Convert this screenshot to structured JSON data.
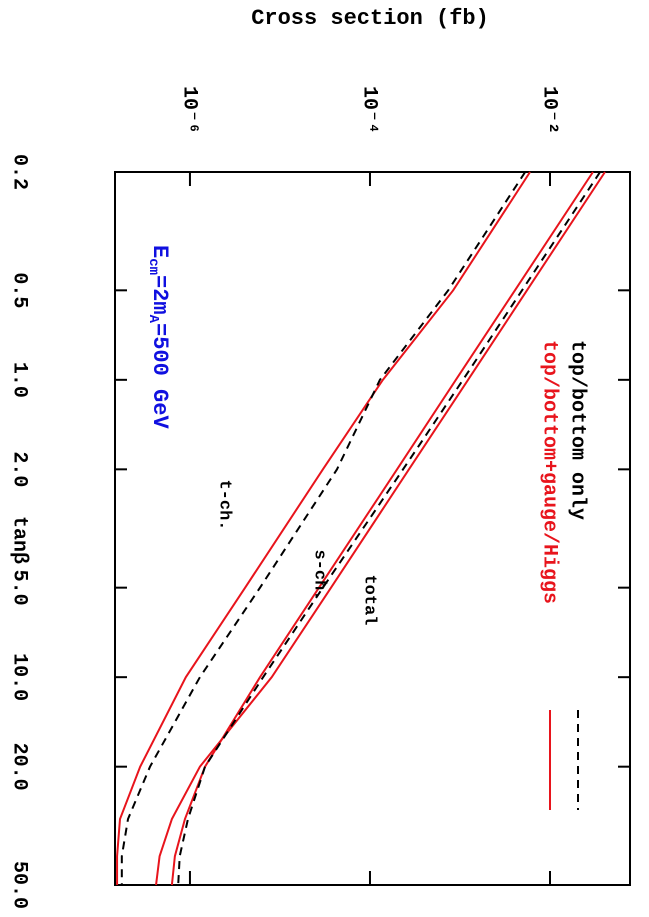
{
  "chart_data": {
    "type": "line",
    "ylabel": "Cross section (fb)",
    "xlabel": "tanβ",
    "x": [
      0.2,
      0.5,
      1,
      2,
      5,
      10,
      20,
      30,
      40,
      50
    ],
    "xlim": [
      0.2,
      50
    ],
    "xscale": "log",
    "xticks": [
      0.2,
      0.5,
      {
        "value": 1,
        "label": "1.0"
      },
      {
        "value": 2,
        "label": "2.0"
      },
      {
        "value": 5,
        "label": "5.0"
      },
      {
        "value": 10,
        "label": "10.0"
      },
      {
        "value": 20,
        "label": "20.0"
      },
      {
        "value": 50,
        "label": "50.0"
      }
    ],
    "ylim": [
      1.47e-07,
      0.0774
    ],
    "yscale": "log",
    "yticks": [
      {
        "value": 1e-06,
        "label": "10⁻⁶"
      },
      {
        "value": 0.0001,
        "label": "10⁻⁴"
      },
      {
        "value": 0.01,
        "label": "10⁻²"
      }
    ],
    "series": [
      {
        "color": "#e8141c",
        "dash": false,
        "values": [
          0.0408,
          0.00555,
          0.00123,
          0.000271,
          3.69e-05,
          8.1e-06,
          1.29e-06,
          6.3e-07,
          4.6e-07,
          4.2e-07
        ]
      },
      {
        "color": "#e8141c",
        "dash": false,
        "values": [
          0.03,
          0.00408,
          0.0009,
          0.0002,
          2.71e-05,
          6e-06,
          1.47e-06,
          8.8e-07,
          6.8e-07,
          6.3e-07
        ]
      },
      {
        "color": "#000000",
        "dash": true,
        "values": [
          0.036,
          0.00489,
          0.00108,
          0.000233,
          3e-05,
          6.5e-06,
          1.47e-06,
          9.5e-07,
          7.7e-07,
          7.4e-07
        ]
      },
      {
        "color": "#e8141c",
        "dash": false,
        "values": [
          0.006,
          0.00084,
          0.000139,
          3e-05,
          4.1e-06,
          9e-07,
          2.8e-07,
          1.67e-07,
          1.55e-07,
          1.55e-07
        ]
      },
      {
        "color": "#000000",
        "dash": true,
        "values": [
          0.0053,
          0.00074,
          0.000129,
          4.3e-05,
          6e-06,
          1.29e-06,
          3.6e-07,
          2.05e-07,
          1.75e-07,
          1.75e-07
        ]
      }
    ],
    "legend": [
      {
        "name": "top/bottom only",
        "color": "#000000",
        "dash": true
      },
      {
        "name": "top/bottom+gauge/Higgs",
        "color": "#e8141c",
        "dash": false
      }
    ],
    "annotations": [
      "total",
      "s-ch.",
      "t-ch."
    ],
    "energy_label": {
      "color": "#1010e0",
      "parts": [
        "E",
        "cm",
        "=2m",
        "A",
        "=500 GeV"
      ]
    }
  }
}
